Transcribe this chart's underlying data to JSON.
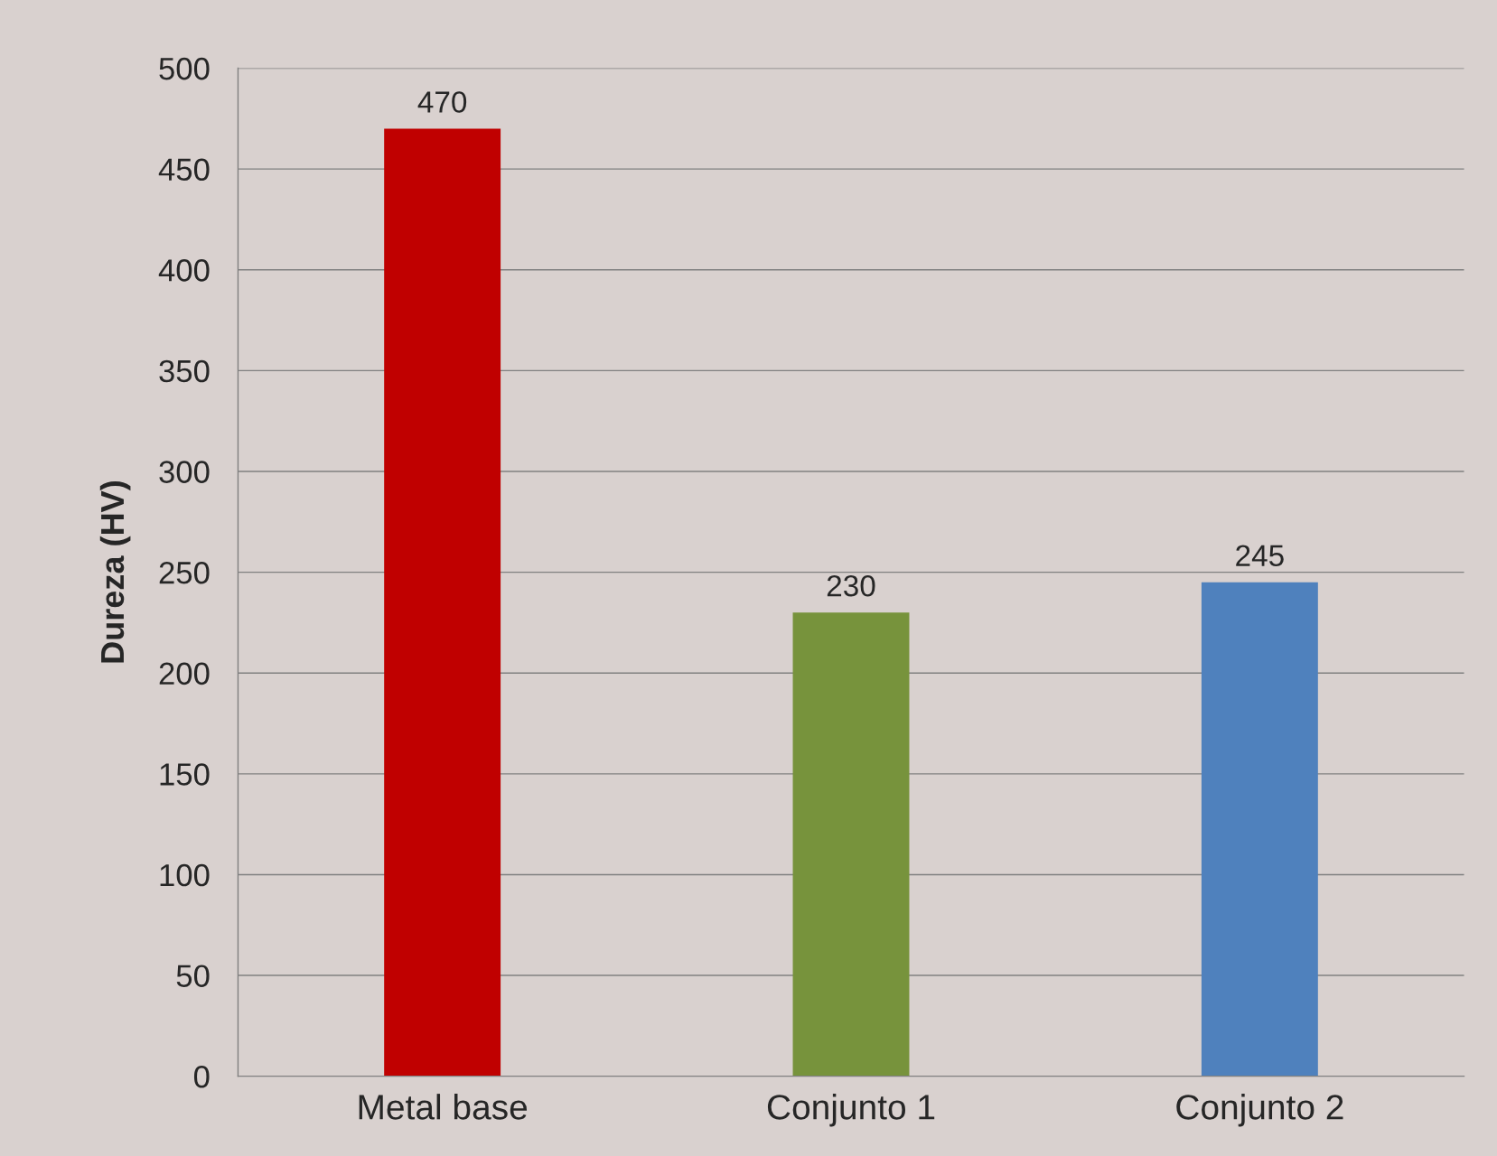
{
  "chart_data": {
    "type": "bar",
    "ylabel": "Dureza (HV)",
    "categories": [
      "Metal base",
      "Conjunto 1",
      "Conjunto 2"
    ],
    "values": [
      470,
      230,
      245
    ],
    "colors": [
      "#c00000",
      "#77933c",
      "#4f81bd"
    ],
    "ylim": [
      0,
      500
    ],
    "yticks": [
      0,
      50,
      100,
      150,
      200,
      250,
      300,
      350,
      400,
      450,
      500
    ],
    "grid": "y",
    "data_labels": true
  }
}
